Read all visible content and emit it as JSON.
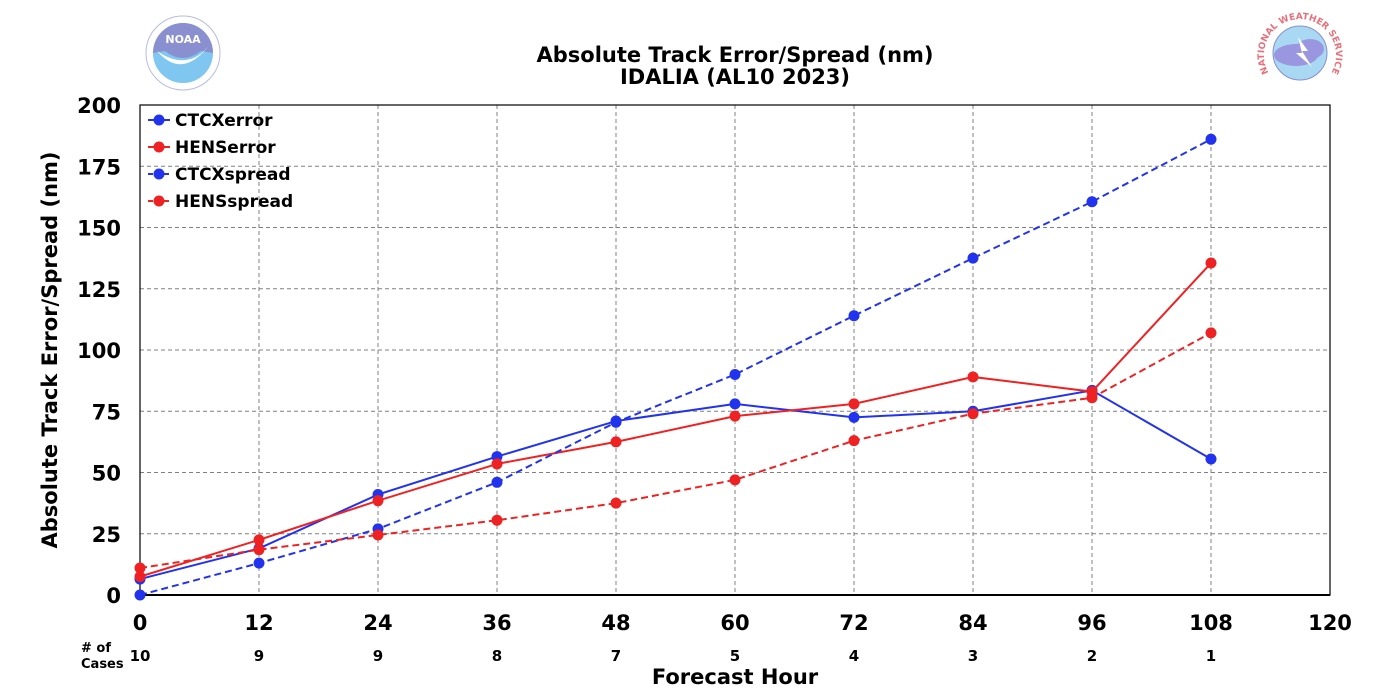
{
  "chart_data": {
    "type": "line",
    "title": "Absolute Track Error/Spread (nm)",
    "subtitle": "IDALIA (AL10 2023)",
    "xlabel": "Forecast Hour",
    "ylabel": "Absolute Track Error/Spread (nm)",
    "xlim": [
      0,
      120
    ],
    "ylim": [
      0,
      200
    ],
    "xticks": [
      0,
      12,
      24,
      36,
      48,
      60,
      72,
      84,
      96,
      108,
      120
    ],
    "yticks": [
      0,
      25,
      50,
      75,
      100,
      125,
      150,
      175,
      200
    ],
    "grid": true,
    "legend_position": "top-left",
    "x": [
      0,
      12,
      24,
      36,
      48,
      60,
      72,
      84,
      96,
      108
    ],
    "series": [
      {
        "name": "CTCXerror",
        "color": "#2233ee",
        "style": "solid",
        "values": [
          6.5,
          19,
          41,
          56.5,
          71,
          78,
          72.5,
          75,
          83.5,
          55.5
        ]
      },
      {
        "name": "HENSerror",
        "color": "#ee2222",
        "style": "solid",
        "values": [
          7.5,
          22.5,
          38.5,
          53.5,
          62.5,
          73,
          78,
          89,
          83,
          135.5
        ]
      },
      {
        "name": "CTCXspread",
        "color": "#2233ee",
        "style": "dashed",
        "values": [
          0,
          13,
          27,
          46,
          70.5,
          90,
          114,
          137.5,
          160.5,
          186
        ]
      },
      {
        "name": "HENSspread",
        "color": "#ee2222",
        "style": "dashed",
        "values": [
          11,
          18.5,
          24.5,
          30.5,
          37.5,
          47,
          63,
          74,
          80.5,
          107
        ]
      }
    ],
    "cases_label": "# of\nCases",
    "cases_label_lines": [
      "# of",
      "Cases"
    ],
    "cases": [
      10,
      9,
      9,
      8,
      7,
      5,
      4,
      3,
      2,
      1
    ]
  },
  "logos": {
    "left": {
      "name": "noaa-logo",
      "text": "NOAA"
    },
    "right": {
      "name": "nws-logo",
      "text": "NATIONAL WEATHER SERVICE"
    }
  }
}
